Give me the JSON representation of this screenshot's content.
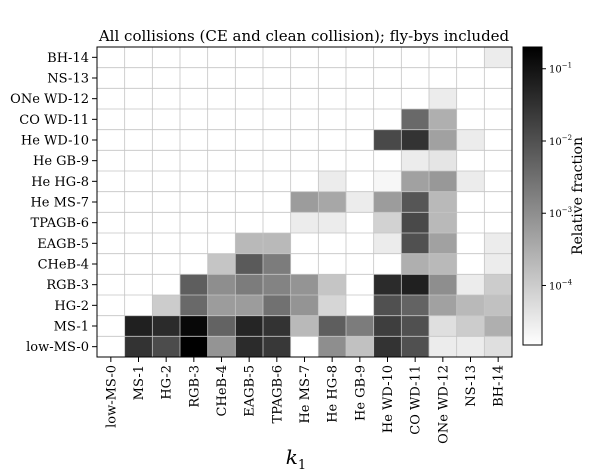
{
  "chart_data": {
    "type": "heatmap",
    "title": "All collisions (CE and clean collision); fly-bys included",
    "xlabel": "k",
    "xlabel_subscript": "1",
    "ylabel": "",
    "x_categories": [
      "low-MS-0",
      "MS-1",
      "HG-2",
      "RGB-3",
      "CHeB-4",
      "EAGB-5",
      "TPAGB-6",
      "He MS-7",
      "He HG-8",
      "He GB-9",
      "He WD-10",
      "CO WD-11",
      "ONe WD-12",
      "NS-13",
      "BH-14"
    ],
    "y_categories": [
      "BH-14",
      "NS-13",
      "ONe WD-12",
      "CO WD-11",
      "He WD-10",
      "He GB-9",
      "He HG-8",
      "He MS-7",
      "TPAGB-6",
      "EAGB-5",
      "CHeB-4",
      "RGB-3",
      "HG-2",
      "MS-1",
      "low-MS-0"
    ],
    "colorbar": {
      "label": "Relative fraction",
      "scale": "log",
      "range": [
        1.5e-05,
        0.2
      ],
      "ticks": [
        {
          "value": 0.1,
          "base": "10",
          "exp": "−1"
        },
        {
          "value": 0.01,
          "base": "10",
          "exp": "−2"
        },
        {
          "value": 0.001,
          "base": "10",
          "exp": "−3"
        },
        {
          "value": 0.0001,
          "base": "10",
          "exp": "−4"
        }
      ]
    },
    "grid": true,
    "values": [
      [
        null,
        null,
        null,
        null,
        null,
        null,
        null,
        null,
        null,
        null,
        null,
        null,
        null,
        null,
        3e-05
      ],
      [
        null,
        null,
        null,
        null,
        null,
        null,
        null,
        null,
        null,
        null,
        null,
        null,
        null,
        null,
        null
      ],
      [
        null,
        null,
        null,
        null,
        null,
        null,
        null,
        null,
        null,
        null,
        null,
        null,
        3e-05,
        null,
        null
      ],
      [
        null,
        null,
        null,
        null,
        null,
        null,
        null,
        null,
        null,
        null,
        null,
        0.004,
        0.0003,
        null,
        null
      ],
      [
        null,
        null,
        null,
        null,
        null,
        null,
        null,
        null,
        null,
        null,
        0.013,
        0.03,
        0.0005,
        3e-05,
        null
      ],
      [
        null,
        null,
        null,
        null,
        null,
        null,
        null,
        null,
        null,
        null,
        null,
        3e-05,
        4e-05,
        null,
        null
      ],
      [
        null,
        null,
        null,
        null,
        null,
        null,
        null,
        null,
        3e-05,
        null,
        2e-05,
        0.0005,
        0.0007,
        3e-05,
        null
      ],
      [
        null,
        null,
        null,
        null,
        null,
        null,
        null,
        0.0006,
        0.0004,
        3e-05,
        0.0006,
        0.008,
        0.0002,
        null,
        null
      ],
      [
        null,
        null,
        null,
        null,
        null,
        null,
        null,
        3e-05,
        3e-05,
        null,
        8e-05,
        0.013,
        0.0002,
        null,
        null
      ],
      [
        null,
        null,
        null,
        null,
        null,
        0.0002,
        0.0002,
        null,
        null,
        null,
        3e-05,
        0.01,
        0.0005,
        null,
        3e-05
      ],
      [
        null,
        null,
        null,
        null,
        0.00013,
        0.007,
        0.002,
        null,
        null,
        null,
        null,
        0.0003,
        0.0002,
        null,
        3e-05
      ],
      [
        null,
        null,
        null,
        0.006,
        0.001,
        0.002,
        0.0015,
        0.0008,
        0.00013,
        null,
        0.04,
        0.06,
        0.001,
        3e-05,
        0.0001
      ],
      [
        null,
        null,
        0.0001,
        0.004,
        0.0006,
        0.0006,
        0.003,
        0.0008,
        7e-05,
        null,
        0.01,
        0.005,
        0.0005,
        0.0002,
        0.00015
      ],
      [
        null,
        0.06,
        0.04,
        0.15,
        0.005,
        0.05,
        0.03,
        0.0002,
        0.006,
        0.002,
        0.02,
        0.01,
        5e-05,
        0.0001,
        0.0003
      ],
      [
        null,
        0.03,
        0.012,
        0.2,
        0.0008,
        0.04,
        0.025,
        null,
        0.001,
        0.00015,
        0.03,
        0.01,
        3e-05,
        3e-05,
        5e-05
      ]
    ]
  }
}
